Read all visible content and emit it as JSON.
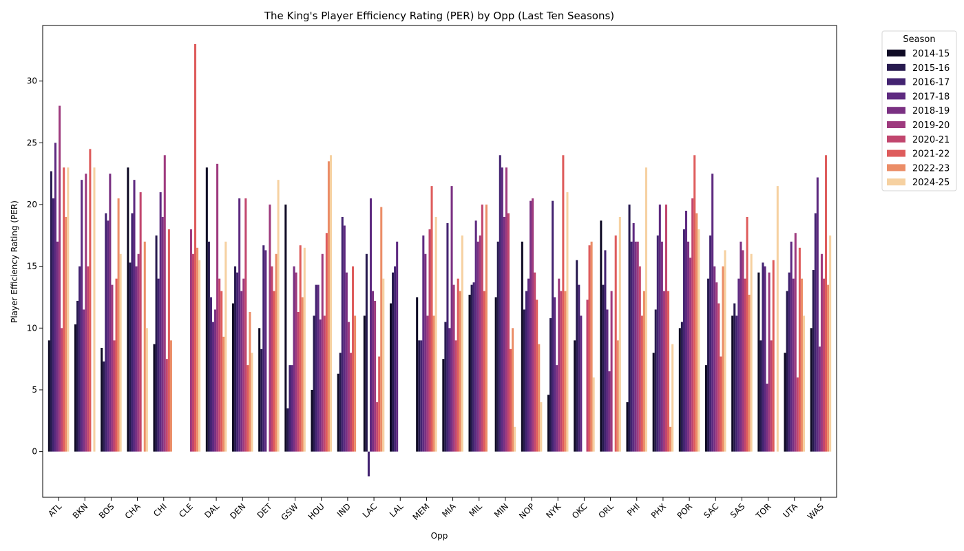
{
  "chart_data": {
    "type": "bar",
    "title": "The King's Player Efficiency Rating (PER) by Opp (Last Ten Seasons)",
    "xlabel": "Opp",
    "ylabel": "Player Efficiency Rating (PER)",
    "ylim": [
      -3.7,
      34.5
    ],
    "yticks": [
      0,
      5,
      10,
      15,
      20,
      25,
      30
    ],
    "grid": false,
    "legend": {
      "title": "Season",
      "placement": "outside top-right"
    },
    "categories": [
      "ATL",
      "BKN",
      "BOS",
      "CHA",
      "CHI",
      "CLE",
      "DAL",
      "DEN",
      "DET",
      "GSW",
      "HOU",
      "IND",
      "LAC",
      "LAL",
      "MEM",
      "MIA",
      "MIL",
      "MIN",
      "NOP",
      "NYK",
      "OKC",
      "ORL",
      "PHI",
      "PHX",
      "POR",
      "SAC",
      "SAS",
      "TOR",
      "UTA",
      "WAS"
    ],
    "series": [
      {
        "name": "2014-15",
        "color": "#0f0b25",
        "values": [
          9,
          10.3,
          8.4,
          23,
          8.7,
          null,
          23,
          12,
          10,
          20,
          5,
          6.3,
          11,
          12,
          12.5,
          7.5,
          12.7,
          12.5,
          17,
          4.6,
          9,
          18.7,
          4,
          8,
          10,
          7,
          11,
          14.5,
          8,
          10
        ]
      },
      {
        "name": "2015-16",
        "color": "#271a4f",
        "values": [
          22.7,
          12.2,
          7.3,
          15.3,
          17.5,
          null,
          17,
          15,
          8.3,
          3.5,
          11,
          8,
          16,
          14.5,
          9,
          10.5,
          13.5,
          17,
          11.5,
          10.8,
          15.5,
          13.5,
          20,
          11.5,
          10.5,
          14,
          12,
          9,
          13,
          14.7
        ]
      },
      {
        "name": "2016-17",
        "color": "#432371",
        "values": [
          20.5,
          15,
          19.3,
          19.3,
          14,
          null,
          12.5,
          14.5,
          16.7,
          7,
          13.5,
          19,
          -2,
          15,
          9,
          18.5,
          13.7,
          24,
          13,
          20.3,
          13.5,
          16.3,
          17,
          17.5,
          18,
          17.5,
          11,
          15.3,
          14.5,
          19.3
        ]
      },
      {
        "name": "2017-18",
        "color": "#5e2a80",
        "values": [
          25,
          22,
          18.7,
          22,
          21,
          null,
          10.5,
          20.5,
          16.3,
          7,
          13.5,
          18.3,
          20.5,
          17,
          17.5,
          10,
          18.7,
          23,
          14,
          12.5,
          11,
          11.5,
          18.5,
          20,
          19.5,
          22.5,
          14,
          15,
          17,
          22.2
        ]
      },
      {
        "name": "2018-19",
        "color": "#7a3082",
        "values": [
          17,
          11.5,
          22.5,
          15,
          19,
          null,
          11.5,
          13,
          null,
          15,
          10.7,
          14.5,
          13,
          null,
          16,
          21.5,
          17,
          19,
          20.3,
          7,
          null,
          6.5,
          17,
          17,
          17,
          15,
          17,
          5.5,
          14,
          8.5
        ]
      },
      {
        "name": "2019-20",
        "color": "#9e3a7e",
        "values": [
          28,
          22.5,
          13.5,
          16,
          24,
          18,
          23.3,
          14,
          20,
          14.5,
          16,
          10.5,
          12.2,
          null,
          11,
          13.5,
          17.5,
          23,
          20.5,
          14,
          null,
          13,
          17,
          13,
          15.7,
          13.7,
          16.3,
          14.5,
          17.7,
          16
        ]
      },
      {
        "name": "2020-21",
        "color": "#c1466e",
        "values": [
          10,
          15,
          9,
          21,
          7.5,
          16,
          14,
          20.5,
          15,
          11.3,
          11,
          8,
          4,
          null,
          18,
          9,
          20,
          19.3,
          14.5,
          13,
          12.3,
          null,
          15,
          20,
          20.5,
          12,
          14,
          9,
          6,
          14
        ]
      },
      {
        "name": "2021-22",
        "color": "#de5c5c",
        "values": [
          23,
          24.5,
          14,
          null,
          18,
          33,
          13,
          7,
          13,
          16.7,
          17.7,
          15,
          7.7,
          null,
          21.5,
          14,
          13,
          8.3,
          12.3,
          24,
          16.7,
          17.5,
          11,
          13,
          24,
          7.7,
          19,
          15.5,
          16.5,
          24
        ]
      },
      {
        "name": "2022-23",
        "color": "#eb8d67",
        "values": [
          19,
          null,
          20.5,
          17,
          9,
          16.5,
          9.3,
          11.3,
          16,
          12.5,
          23.5,
          11,
          19.8,
          null,
          11,
          13,
          20,
          10,
          8.7,
          13,
          17,
          9,
          13,
          2,
          19.3,
          15,
          12.7,
          null,
          14,
          13.5
        ]
      },
      {
        "name": "2024-25",
        "color": "#f6d1a1",
        "values": [
          23,
          23,
          16,
          10,
          null,
          15.5,
          17,
          8,
          22,
          16.5,
          24,
          null,
          14,
          null,
          19,
          17.5,
          null,
          2,
          4,
          21,
          6,
          19,
          23,
          8.7,
          18,
          16.3,
          16,
          21.5,
          11,
          17.5
        ]
      }
    ]
  }
}
